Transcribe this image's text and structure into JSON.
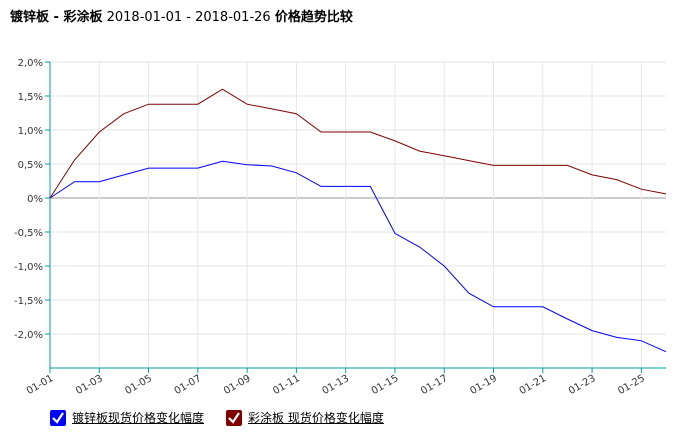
{
  "header": {
    "title_a": "镀锌板",
    "sep": " - ",
    "title_b": "彩涂板",
    "range": " 2018-01-01 - 2018-01-26 ",
    "title_c": "价格趋势比较"
  },
  "legend": {
    "items": [
      {
        "label": "镀锌板现货价格变化幅度",
        "color": "#0000ff",
        "icon": "check-icon"
      },
      {
        "label": "彩涂板 现货价格变化幅度",
        "color": "#800000",
        "icon": "check-icon"
      }
    ]
  },
  "chart_data": {
    "type": "line",
    "x": [
      "01-01",
      "01-02",
      "01-03",
      "01-04",
      "01-05",
      "01-06",
      "01-07",
      "01-08",
      "01-09",
      "01-10",
      "01-11",
      "01-12",
      "01-13",
      "01-14",
      "01-15",
      "01-16",
      "01-17",
      "01-18",
      "01-19",
      "01-20",
      "01-21",
      "01-22",
      "01-23",
      "01-24",
      "01-25",
      "01-26"
    ],
    "x_tick_labels": [
      "01-01",
      "01-03",
      "01-05",
      "01-07",
      "01-09",
      "01-11",
      "01-13",
      "01-15",
      "01-17",
      "01-19",
      "01-21",
      "01-23",
      "01-25"
    ],
    "y_tick_labels": [
      "2,0%",
      "1,5%",
      "1,0%",
      "0,5%",
      "0%",
      "-0,5%",
      "-1,0%",
      "-1,5%",
      "-2,0%"
    ],
    "ylim": [
      -2.5,
      2.0
    ],
    "grid": true,
    "legend_position": "bottom-left",
    "series": [
      {
        "name": "镀锌板现货价格变化幅度",
        "color": "#0000ff",
        "values": [
          0,
          0.24,
          0.24,
          0.34,
          0.44,
          0.44,
          0.44,
          0.54,
          0.49,
          0.47,
          0.37,
          0.17,
          0.17,
          0.17,
          -0.52,
          -0.72,
          -1.0,
          -1.4,
          -1.6,
          -1.6,
          -1.6,
          -1.78,
          -1.95,
          -2.05,
          -2.1,
          -2.26
        ]
      },
      {
        "name": "彩涂板 现货价格变化幅度",
        "color": "#800000",
        "values": [
          0,
          0.56,
          0.97,
          1.24,
          1.38,
          1.38,
          1.38,
          1.6,
          1.38,
          1.31,
          1.24,
          0.97,
          0.97,
          0.97,
          0.84,
          0.69,
          0.62,
          0.55,
          0.48,
          0.48,
          0.48,
          0.48,
          0.34,
          0.27,
          0.13,
          0.06
        ]
      }
    ]
  }
}
